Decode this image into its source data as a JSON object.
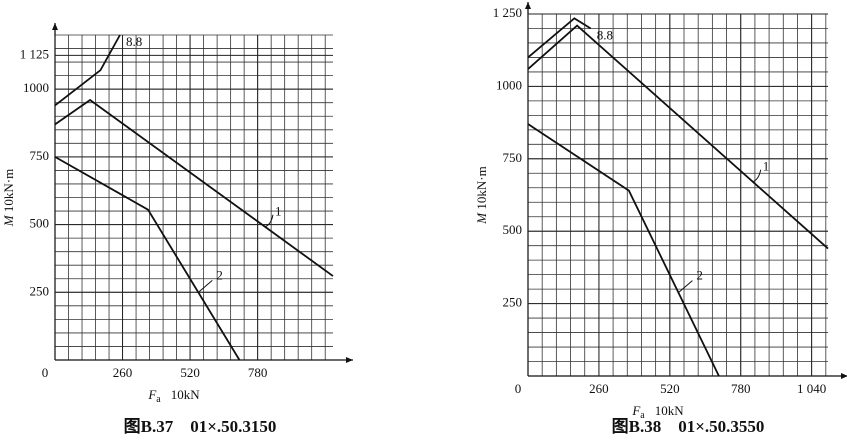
{
  "chart_data": [
    {
      "type": "line",
      "caption": "图B.37　01×.50.3150",
      "xlabel": "F",
      "xlabel_sub": "a",
      "xunit": "10kN",
      "ylabel": "M",
      "yunit": "10kN·m",
      "xlim": [
        0,
        1070
      ],
      "ylim": [
        0,
        1200
      ],
      "xticks": [
        0,
        260,
        520,
        780
      ],
      "yticks": [
        250,
        500,
        750,
        1000,
        {
          "value": 1125,
          "label": "1 125"
        }
      ],
      "grid": true,
      "series": [
        {
          "name": "8.8",
          "color": "#111111",
          "x": [
            0,
            175,
            250
          ],
          "values": [
            940,
            1070,
            1200
          ]
        },
        {
          "name": "1",
          "color": "#111111",
          "x": [
            0,
            135,
            1070
          ],
          "values": [
            870,
            960,
            310
          ]
        },
        {
          "name": "2",
          "color": "#111111",
          "x": [
            0,
            358,
            710
          ],
          "values": [
            750,
            555,
            0
          ]
        }
      ]
    },
    {
      "type": "line",
      "caption": "图B.38　01×.50.3550",
      "xlabel": "F",
      "xlabel_sub": "a",
      "xunit": "10kN",
      "ylabel": "M",
      "yunit": "10kN·m",
      "xlim": [
        0,
        1100
      ],
      "ylim": [
        0,
        1250
      ],
      "xticks": [
        0,
        260,
        520,
        780,
        {
          "value": 1040,
          "label": "1 040"
        }
      ],
      "yticks": [
        250,
        500,
        750,
        1000,
        {
          "value": 1250,
          "label": "1 250"
        }
      ],
      "grid": true,
      "series": [
        {
          "name": "8.8",
          "color": "#111111",
          "x": [
            0,
            170,
            230
          ],
          "values": [
            1100,
            1235,
            1200
          ]
        },
        {
          "name": "1",
          "color": "#111111",
          "x": [
            0,
            180,
            1100
          ],
          "values": [
            1060,
            1210,
            440
          ]
        },
        {
          "name": "2",
          "color": "#111111",
          "x": [
            0,
            370,
            700
          ],
          "values": [
            870,
            640,
            0
          ]
        }
      ]
    }
  ]
}
